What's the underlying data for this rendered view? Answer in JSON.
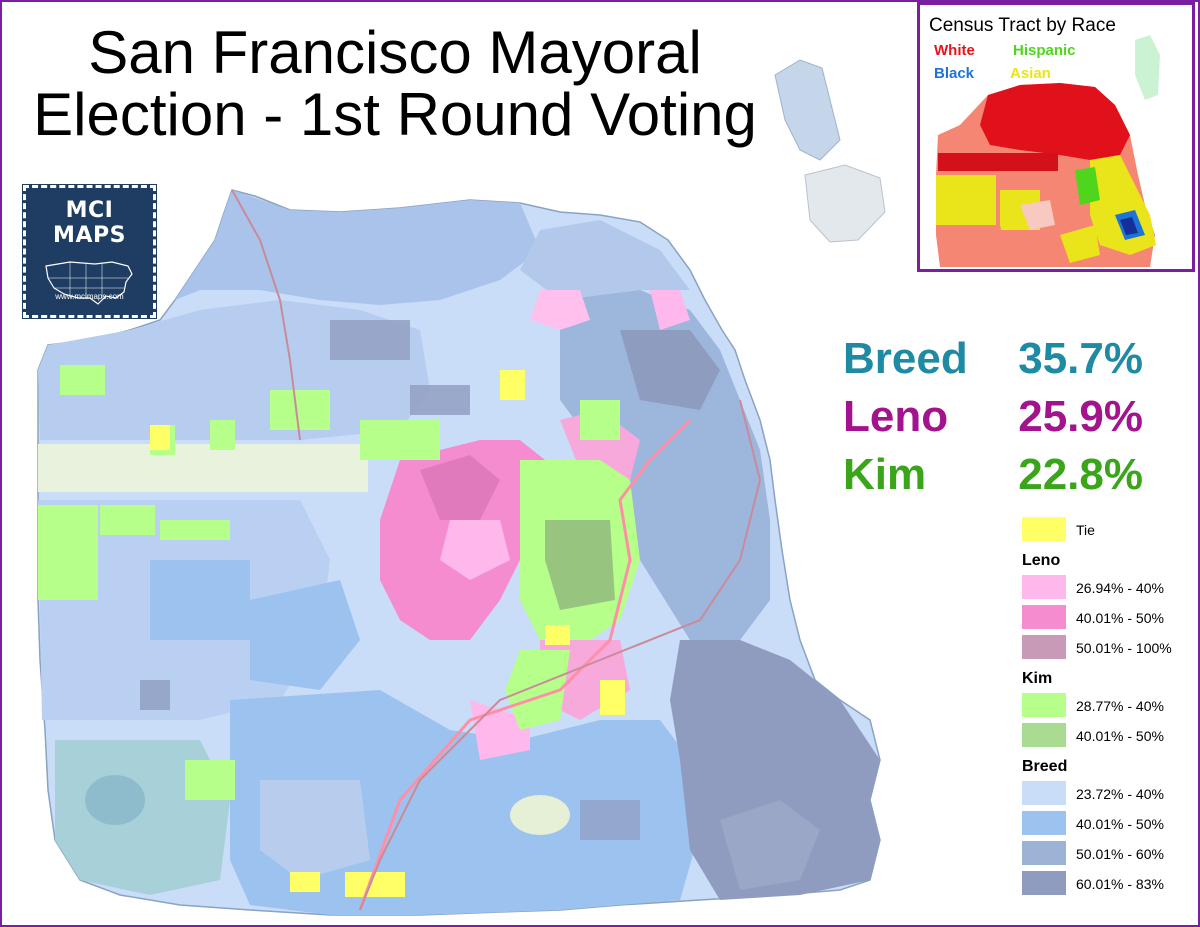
{
  "title": {
    "line1": "San Francisco Mayoral",
    "line2": "Election - 1st Round Voting"
  },
  "logo": {
    "name": "MCI MAPS",
    "url": "www.mcimaps.com"
  },
  "inset": {
    "title": "Census Tract by Race",
    "keys": [
      {
        "label": "White",
        "color": "#e8131b"
      },
      {
        "label": "Hispanic",
        "color": "#4fd61c"
      },
      {
        "label": "Black",
        "color": "#1e74d6"
      },
      {
        "label": "Asian",
        "color": "#e9e51a"
      }
    ]
  },
  "results": [
    {
      "candidate": "Breed",
      "percent": "35.7%",
      "color": "#1f8aa3"
    },
    {
      "candidate": "Leno",
      "percent": "25.9%",
      "color": "#a3138e"
    },
    {
      "candidate": "Kim",
      "percent": "22.8%",
      "color": "#3aa51a"
    }
  ],
  "legend": {
    "tie": {
      "label": "Tie",
      "color": "#ffff66"
    },
    "groups": [
      {
        "name": "Leno",
        "items": [
          {
            "label": "26.94% - 40%",
            "color": "#ffb8ec"
          },
          {
            "label": "40.01% - 50%",
            "color": "#f58ccf"
          },
          {
            "label": "50.01% - 100%",
            "color": "#c999b8"
          }
        ]
      },
      {
        "name": "Kim",
        "items": [
          {
            "label": "28.77% - 40%",
            "color": "#b6ff8a"
          },
          {
            "label": "40.01% - 50%",
            "color": "#a9dc91"
          }
        ]
      },
      {
        "name": "Breed",
        "items": [
          {
            "label": "23.72% - 40%",
            "color": "#c9dcf8"
          },
          {
            "label": "40.01% - 50%",
            "color": "#9cc2f0"
          },
          {
            "label": "50.01% - 60%",
            "color": "#9db3d6"
          },
          {
            "label": "60.01% - 83%",
            "color": "#8f9cbf"
          }
        ]
      }
    ]
  }
}
